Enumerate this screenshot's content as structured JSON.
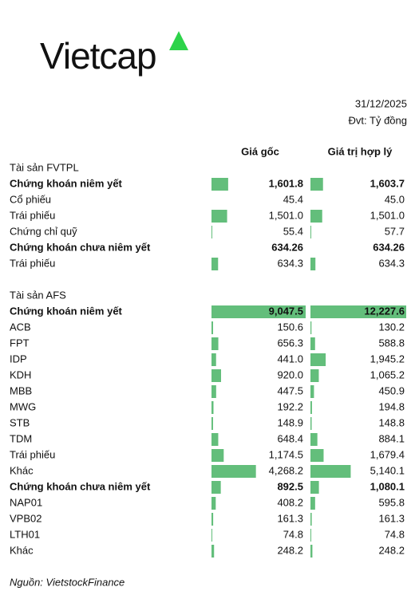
{
  "logo": {
    "text": "Vietcap",
    "accent_color": "#2dd34a"
  },
  "header": {
    "date": "31/12/2025",
    "unit": "Đvt: Tỷ đồng"
  },
  "table": {
    "columns": [
      "Giá gốc",
      "Giá trị hợp lý"
    ],
    "bar_color": "#63be7b",
    "sections": [
      {
        "title": "Tài sản FVTPL",
        "rows": [
          {
            "label": "Chứng khoán niêm yết",
            "bold": true,
            "cost": {
              "value": 1601.8,
              "label": "1,601.8"
            },
            "fair": {
              "value": 1603.7,
              "label": "1,603.7"
            }
          },
          {
            "label": "Cổ phiếu",
            "bar": false,
            "cost": {
              "value": 45.4,
              "label": "45.4"
            },
            "fair": {
              "value": 45.0,
              "label": "45.0"
            }
          },
          {
            "label": "Trái phiếu",
            "cost": {
              "value": 1501.0,
              "label": "1,501.0"
            },
            "fair": {
              "value": 1501.0,
              "label": "1,501.0"
            }
          },
          {
            "label": "Chứng chỉ quỹ",
            "cost": {
              "value": 55.4,
              "label": "55.4"
            },
            "fair": {
              "value": 57.7,
              "label": "57.7"
            }
          },
          {
            "label": "Chứng khoán chưa niêm yết",
            "bold": true,
            "bar": false,
            "cost": {
              "value": 634.26,
              "label": "634.26"
            },
            "fair": {
              "value": 634.26,
              "label": "634.26"
            }
          },
          {
            "label": "Trái phiếu",
            "cost": {
              "value": 634.3,
              "label": "634.3"
            },
            "fair": {
              "value": 634.3,
              "label": "634.3"
            }
          }
        ]
      },
      {
        "title": "Tài sản AFS",
        "rows": [
          {
            "label": "Chứng khoán niêm yết",
            "bold": true,
            "cost": {
              "value": 9047.5,
              "label": "9,047.5"
            },
            "fair": {
              "value": 12227.6,
              "label": "12,227.6"
            }
          },
          {
            "label": "ACB",
            "cost": {
              "value": 150.6,
              "label": "150.6"
            },
            "fair": {
              "value": 130.2,
              "label": "130.2"
            }
          },
          {
            "label": "FPT",
            "cost": {
              "value": 656.3,
              "label": "656.3"
            },
            "fair": {
              "value": 588.8,
              "label": "588.8"
            }
          },
          {
            "label": "IDP",
            "cost": {
              "value": 441.0,
              "label": "441.0"
            },
            "fair": {
              "value": 1945.2,
              "label": "1,945.2"
            }
          },
          {
            "label": "KDH",
            "cost": {
              "value": 920.0,
              "label": "920.0"
            },
            "fair": {
              "value": 1065.2,
              "label": "1,065.2"
            }
          },
          {
            "label": "MBB",
            "cost": {
              "value": 447.5,
              "label": "447.5"
            },
            "fair": {
              "value": 450.9,
              "label": "450.9"
            }
          },
          {
            "label": "MWG",
            "cost": {
              "value": 192.2,
              "label": "192.2"
            },
            "fair": {
              "value": 194.8,
              "label": "194.8"
            }
          },
          {
            "label": "STB",
            "cost": {
              "value": 148.9,
              "label": "148.9"
            },
            "fair": {
              "value": 148.8,
              "label": "148.8"
            }
          },
          {
            "label": "TDM",
            "cost": {
              "value": 648.4,
              "label": "648.4"
            },
            "fair": {
              "value": 884.1,
              "label": "884.1"
            }
          },
          {
            "label": "Trái phiếu",
            "cost": {
              "value": 1174.5,
              "label": "1,174.5"
            },
            "fair": {
              "value": 1679.4,
              "label": "1,679.4"
            }
          },
          {
            "label": "Khác",
            "cost": {
              "value": 4268.2,
              "label": "4,268.2"
            },
            "fair": {
              "value": 5140.1,
              "label": "5,140.1"
            }
          },
          {
            "label": "Chứng khoán chưa niêm yết",
            "bold": true,
            "cost": {
              "value": 892.5,
              "label": "892.5"
            },
            "fair": {
              "value": 1080.1,
              "label": "1,080.1"
            }
          },
          {
            "label": "NAP01",
            "cost": {
              "value": 408.2,
              "label": "408.2"
            },
            "fair": {
              "value": 595.8,
              "label": "595.8"
            }
          },
          {
            "label": "VPB02",
            "cost": {
              "value": 161.3,
              "label": "161.3"
            },
            "fair": {
              "value": 161.3,
              "label": "161.3"
            }
          },
          {
            "label": "LTH01",
            "cost": {
              "value": 74.8,
              "label": "74.8"
            },
            "fair": {
              "value": 74.8,
              "label": "74.8"
            }
          },
          {
            "label": "Khác",
            "cost": {
              "value": 248.2,
              "label": "248.2"
            },
            "fair": {
              "value": 248.2,
              "label": "248.2"
            }
          }
        ]
      }
    ]
  },
  "source": "Nguồn: VietstockFinance"
}
